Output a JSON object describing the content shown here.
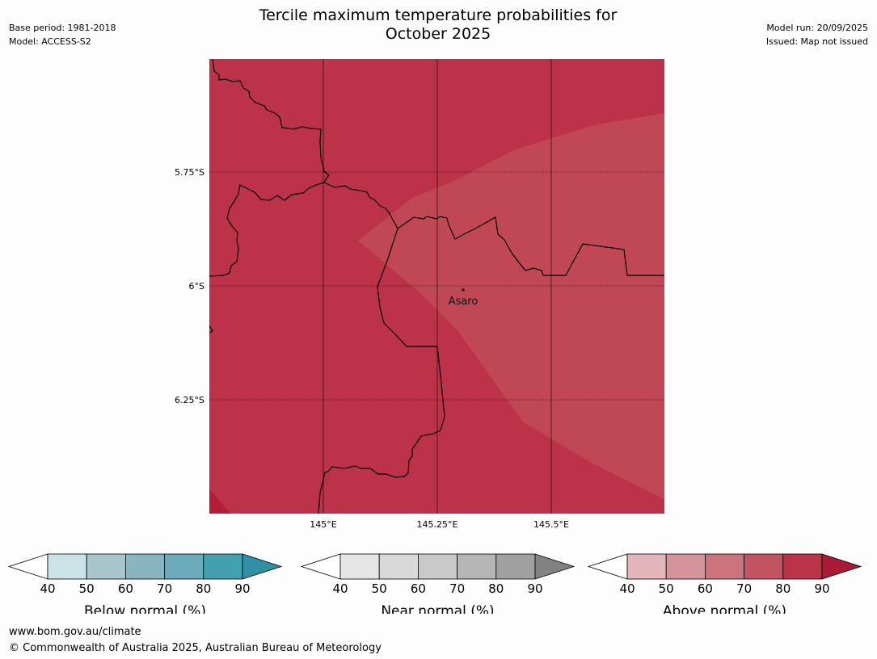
{
  "header": {
    "title_line1": "Tercile maximum temperature probabilities for",
    "title_line2": "October 2025",
    "base_period": "Base period: 1981-2018",
    "model": "Model: ACCESS-S2",
    "model_run": "Model run: 20/09/2025",
    "issued": "Issued: Map not issued"
  },
  "map": {
    "latitude_labels": [
      "5.75°S",
      "6°S",
      "6.25°S"
    ],
    "longitude_labels": [
      "145°E",
      "145.25°E",
      "145.5°E"
    ],
    "place_label": "Asaro",
    "colors": {
      "above_80_90": "#bc3249",
      "above_70_80": "#c04855",
      "above_90_plus": "#b41c38",
      "border_line": "#000000",
      "grid_line": "#000000"
    }
  },
  "legends": [
    {
      "title": "Below normal (%)",
      "ticks": [
        "40",
        "50",
        "60",
        "70",
        "80",
        "90"
      ],
      "colors": [
        "#cbe2e7",
        "#a7c5cb",
        "#88b5c1",
        "#6babba",
        "#43a0ae"
      ],
      "low_color": "#ffffff",
      "high_color": "#2e90a2"
    },
    {
      "title": "Near normal (%)",
      "ticks": [
        "40",
        "50",
        "60",
        "70",
        "80",
        "90"
      ],
      "colors": [
        "#e6e6e6",
        "#d9d9d9",
        "#c9c9c9",
        "#b5b5b5",
        "#a0a0a0"
      ],
      "low_color": "#ffffff",
      "high_color": "#828282"
    },
    {
      "title": "Above normal (%)",
      "ticks": [
        "40",
        "50",
        "60",
        "70",
        "80",
        "90"
      ],
      "colors": [
        "#e2b6bb",
        "#d5939b",
        "#cb747d",
        "#c35563",
        "#bb3349"
      ],
      "low_color": "#ffffff",
      "high_color": "#a81a35"
    }
  ],
  "footer": {
    "url": "www.bom.gov.au/climate",
    "copyright": "© Commonwealth of Australia 2025, Australian Bureau of Meteorology"
  }
}
